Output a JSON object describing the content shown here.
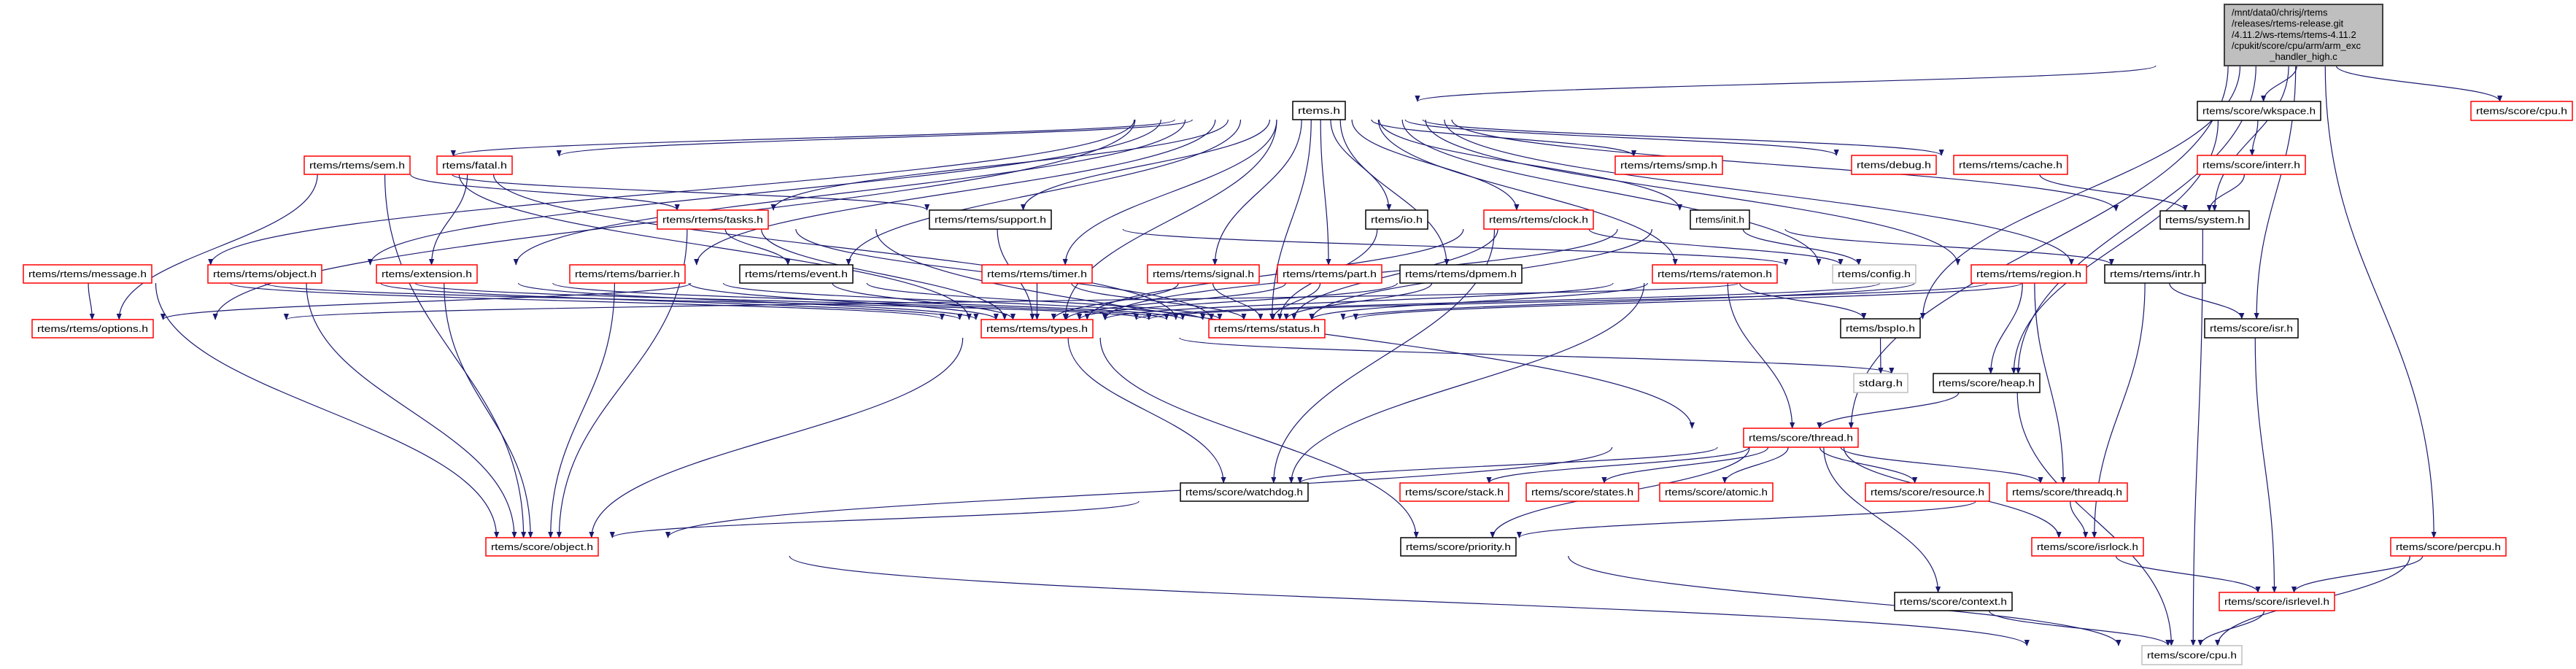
{
  "graph": {
    "edge_color": "#191970",
    "node_styles": {
      "root": {
        "border": "#404040",
        "fill": "#bfbfbf"
      },
      "documented": {
        "border": "#000000",
        "fill": "#ffffff"
      },
      "truncated": {
        "border": "#ff0000",
        "fill": "#ffffff"
      },
      "undocumented": {
        "border": "#bfbfbf",
        "fill": "#ffffff"
      }
    },
    "nodes": [
      {
        "id": "root",
        "style": "root",
        "label": [
          "/mnt/data0/chrisj/rtems",
          "/releases/rtems-release.git",
          "/4.11.2/ws-rtems/rtems-4.11.2",
          "/cpukit/score/cpu/arm/arm_exc",
          "_handler_high.c"
        ]
      },
      {
        "id": "rtems",
        "style": "documented",
        "label": "rtems.h"
      },
      {
        "id": "sem",
        "style": "truncated",
        "label": "rtems/rtems/sem.h"
      },
      {
        "id": "fatal",
        "style": "truncated",
        "label": "rtems/fatal.h"
      },
      {
        "id": "smp",
        "style": "truncated",
        "label": "rtems/rtems/smp.h"
      },
      {
        "id": "debug",
        "style": "truncated",
        "label": "rtems/debug.h"
      },
      {
        "id": "cache",
        "style": "truncated",
        "label": "rtems/rtems/cache.h"
      },
      {
        "id": "interr",
        "style": "truncated",
        "label": "rtems/score/interr.h"
      },
      {
        "id": "wkspace",
        "style": "documented",
        "label": "rtems/score/wkspace.h"
      },
      {
        "id": "cpu_top",
        "style": "truncated",
        "label": "rtems/score/cpu.h"
      },
      {
        "id": "tasks",
        "style": "truncated",
        "label": "rtems/rtems/tasks.h"
      },
      {
        "id": "support",
        "style": "documented",
        "label": "rtems/rtems/support.h"
      },
      {
        "id": "io",
        "style": "documented",
        "label": "rtems/io.h"
      },
      {
        "id": "clock",
        "style": "truncated",
        "label": "rtems/rtems/clock.h"
      },
      {
        "id": "init",
        "style": "documented",
        "label": "rtems/init.h"
      },
      {
        "id": "system",
        "style": "documented",
        "label": "rtems/system.h"
      },
      {
        "id": "message",
        "style": "truncated",
        "label": "rtems/rtems/message.h"
      },
      {
        "id": "object",
        "style": "truncated",
        "label": "rtems/rtems/object.h"
      },
      {
        "id": "extension",
        "style": "truncated",
        "label": "rtems/extension.h"
      },
      {
        "id": "barrier",
        "style": "truncated",
        "label": "rtems/rtems/barrier.h"
      },
      {
        "id": "event",
        "style": "documented",
        "label": "rtems/rtems/event.h"
      },
      {
        "id": "timer",
        "style": "truncated",
        "label": "rtems/rtems/timer.h"
      },
      {
        "id": "signal",
        "style": "truncated",
        "label": "rtems/rtems/signal.h"
      },
      {
        "id": "part",
        "style": "truncated",
        "label": "rtems/rtems/part.h"
      },
      {
        "id": "dpmem",
        "style": "documented",
        "label": "rtems/rtems/dpmem.h"
      },
      {
        "id": "ratemon",
        "style": "truncated",
        "label": "rtems/rtems/ratemon.h"
      },
      {
        "id": "config",
        "style": "undocumented",
        "label": "rtems/config.h"
      },
      {
        "id": "region",
        "style": "truncated",
        "label": "rtems/rtems/region.h"
      },
      {
        "id": "intr",
        "style": "documented",
        "label": "rtems/rtems/intr.h"
      },
      {
        "id": "options",
        "style": "truncated",
        "label": "rtems/rtems/options.h"
      },
      {
        "id": "types",
        "style": "truncated",
        "label": "rtems/rtems/types.h"
      },
      {
        "id": "status",
        "style": "truncated",
        "label": "rtems/rtems/status.h"
      },
      {
        "id": "bspio",
        "style": "documented",
        "label": "rtems/bspIo.h"
      },
      {
        "id": "isr",
        "style": "documented",
        "label": "rtems/score/isr.h"
      },
      {
        "id": "stdarg",
        "style": "undocumented",
        "label": "stdarg.h"
      },
      {
        "id": "heap",
        "style": "documented",
        "label": "rtems/score/heap.h"
      },
      {
        "id": "thread",
        "style": "truncated",
        "label": "rtems/score/thread.h"
      },
      {
        "id": "watchdog",
        "style": "documented",
        "label": "rtems/score/watchdog.h"
      },
      {
        "id": "stack",
        "style": "truncated",
        "label": "rtems/score/stack.h"
      },
      {
        "id": "states",
        "style": "truncated",
        "label": "rtems/score/states.h"
      },
      {
        "id": "atomic",
        "style": "truncated",
        "label": "rtems/score/atomic.h"
      },
      {
        "id": "resource",
        "style": "truncated",
        "label": "rtems/score/resource.h"
      },
      {
        "id": "threadq",
        "style": "truncated",
        "label": "rtems/score/threadq.h"
      },
      {
        "id": "sobject",
        "style": "truncated",
        "label": "rtems/score/object.h"
      },
      {
        "id": "priority",
        "style": "documented",
        "label": "rtems/score/priority.h"
      },
      {
        "id": "isrlock",
        "style": "truncated",
        "label": "rtems/score/isrlock.h"
      },
      {
        "id": "percpu",
        "style": "truncated",
        "label": "rtems/score/percpu.h"
      },
      {
        "id": "context",
        "style": "documented",
        "label": "rtems/score/context.h"
      },
      {
        "id": "isrlevel",
        "style": "truncated",
        "label": "rtems/score/isrlevel.h"
      },
      {
        "id": "scpu",
        "style": "undocumented",
        "label": "rtems/score/cpu.h"
      }
    ],
    "edges": [
      [
        "root",
        "rtems"
      ],
      [
        "root",
        "wkspace"
      ],
      [
        "root",
        "system"
      ],
      [
        "root",
        "cpu_top"
      ],
      [
        "root",
        "isr"
      ],
      [
        "root",
        "bspio"
      ],
      [
        "root",
        "heap"
      ],
      [
        "root",
        "thread"
      ],
      [
        "root",
        "percpu"
      ],
      [
        "rtems",
        "sem"
      ],
      [
        "rtems",
        "fatal"
      ],
      [
        "rtems",
        "tasks"
      ],
      [
        "rtems",
        "message"
      ],
      [
        "rtems",
        "object"
      ],
      [
        "rtems",
        "extension"
      ],
      [
        "rtems",
        "barrier"
      ],
      [
        "rtems",
        "event"
      ],
      [
        "rtems",
        "options"
      ],
      [
        "rtems",
        "support"
      ],
      [
        "rtems",
        "io"
      ],
      [
        "rtems",
        "clock"
      ],
      [
        "rtems",
        "init"
      ],
      [
        "rtems",
        "smp"
      ],
      [
        "rtems",
        "timer"
      ],
      [
        "rtems",
        "signal"
      ],
      [
        "rtems",
        "part"
      ],
      [
        "rtems",
        "dpmem"
      ],
      [
        "rtems",
        "ratemon"
      ],
      [
        "rtems",
        "types"
      ],
      [
        "rtems",
        "status"
      ],
      [
        "rtems",
        "debug"
      ],
      [
        "rtems",
        "cache"
      ],
      [
        "rtems",
        "system"
      ],
      [
        "rtems",
        "config"
      ],
      [
        "rtems",
        "region"
      ],
      [
        "rtems",
        "intr"
      ],
      [
        "sem",
        "options"
      ],
      [
        "sem",
        "types"
      ],
      [
        "sem",
        "status"
      ],
      [
        "sem",
        "tasks"
      ],
      [
        "sem",
        "support"
      ],
      [
        "sem",
        "sobject"
      ],
      [
        "fatal",
        "extension"
      ],
      [
        "tasks",
        "event"
      ],
      [
        "tasks",
        "types"
      ],
      [
        "tasks",
        "status"
      ],
      [
        "tasks",
        "sobject"
      ],
      [
        "tasks",
        "thread"
      ],
      [
        "message",
        "options"
      ],
      [
        "message",
        "types"
      ],
      [
        "message",
        "status"
      ],
      [
        "message",
        "sobject"
      ],
      [
        "object",
        "types"
      ],
      [
        "object",
        "status"
      ],
      [
        "object",
        "sobject"
      ],
      [
        "extension",
        "types"
      ],
      [
        "extension",
        "status"
      ],
      [
        "extension",
        "sobject"
      ],
      [
        "barrier",
        "types"
      ],
      [
        "barrier",
        "status"
      ],
      [
        "barrier",
        "sobject"
      ],
      [
        "event",
        "options"
      ],
      [
        "event",
        "types"
      ],
      [
        "event",
        "status"
      ],
      [
        "support",
        "types"
      ],
      [
        "support",
        "config"
      ],
      [
        "io",
        "status"
      ],
      [
        "clock",
        "types"
      ],
      [
        "clock",
        "status"
      ],
      [
        "clock",
        "config"
      ],
      [
        "clock",
        "watchdog"
      ],
      [
        "init",
        "config"
      ],
      [
        "init",
        "status"
      ],
      [
        "init",
        "types"
      ],
      [
        "init",
        "intr"
      ],
      [
        "timer",
        "types"
      ],
      [
        "timer",
        "status"
      ],
      [
        "signal",
        "types"
      ],
      [
        "signal",
        "status"
      ],
      [
        "part",
        "types"
      ],
      [
        "part",
        "status"
      ],
      [
        "dpmem",
        "types"
      ],
      [
        "dpmem",
        "status"
      ],
      [
        "ratemon",
        "types"
      ],
      [
        "ratemon",
        "status"
      ],
      [
        "ratemon",
        "bspio"
      ],
      [
        "ratemon",
        "thread"
      ],
      [
        "ratemon",
        "watchdog"
      ],
      [
        "region",
        "types"
      ],
      [
        "region",
        "status"
      ],
      [
        "region",
        "heap"
      ],
      [
        "region",
        "threadq"
      ],
      [
        "region",
        "options"
      ],
      [
        "intr",
        "status"
      ],
      [
        "intr",
        "isr"
      ],
      [
        "intr",
        "isrlock"
      ],
      [
        "intr",
        "types"
      ],
      [
        "types",
        "heap"
      ],
      [
        "types",
        "sobject"
      ],
      [
        "types",
        "watchdog"
      ],
      [
        "types",
        "priority"
      ],
      [
        "wkspace",
        "interr"
      ],
      [
        "wkspace",
        "heap"
      ],
      [
        "interr",
        "system"
      ],
      [
        "cache",
        "system"
      ],
      [
        "system",
        "scpu"
      ],
      [
        "bspio",
        "stdarg"
      ],
      [
        "isr",
        "isrlevel"
      ],
      [
        "heap",
        "thread"
      ],
      [
        "heap",
        "scpu"
      ],
      [
        "thread",
        "watchdog"
      ],
      [
        "thread",
        "stack"
      ],
      [
        "thread",
        "states"
      ],
      [
        "thread",
        "atomic"
      ],
      [
        "thread",
        "resource"
      ],
      [
        "thread",
        "threadq"
      ],
      [
        "thread",
        "isrlock"
      ],
      [
        "thread",
        "context"
      ],
      [
        "thread",
        "priority"
      ],
      [
        "thread",
        "sobject"
      ],
      [
        "watchdog",
        "sobject"
      ],
      [
        "threadq",
        "isrlock"
      ],
      [
        "threadq",
        "priority"
      ],
      [
        "priority",
        "scpu"
      ],
      [
        "isrlock",
        "isrlevel"
      ],
      [
        "percpu",
        "isrlevel"
      ],
      [
        "percpu",
        "scpu"
      ],
      [
        "context",
        "scpu"
      ],
      [
        "isrlevel",
        "scpu"
      ],
      [
        "sobject",
        "scpu"
      ]
    ]
  }
}
